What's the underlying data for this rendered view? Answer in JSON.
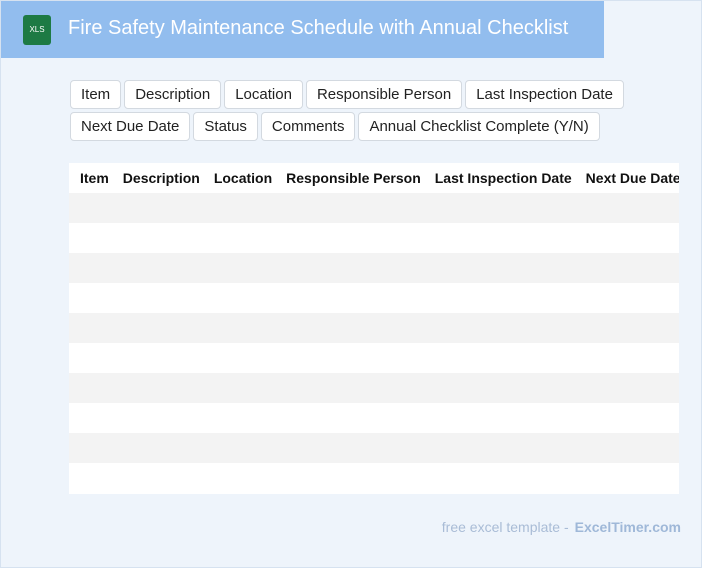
{
  "header": {
    "icon_label": "XLS",
    "title": "Fire Safety Maintenance Schedule with Annual Checklist"
  },
  "tags": [
    [
      "Item",
      "Description",
      "Location",
      "Responsible Person",
      "Last Inspection Date"
    ],
    [
      "Next Due Date",
      "Status",
      "Comments",
      "Annual Checklist Complete (Y/N)"
    ]
  ],
  "table": {
    "headers": [
      "Item",
      "Description",
      "Location",
      "Responsible Person",
      "Last Inspection Date",
      "Next Due Date"
    ]
  },
  "footer": {
    "text": "free excel template -",
    "brand": "ExcelTimer.com"
  }
}
